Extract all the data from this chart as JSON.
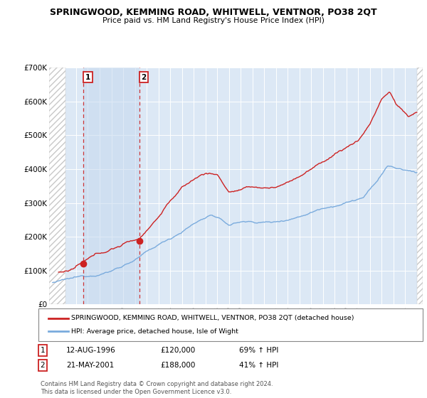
{
  "title": "SPRINGWOOD, KEMMING ROAD, WHITWELL, VENTNOR, PO38 2QT",
  "subtitle": "Price paid vs. HM Land Registry's House Price Index (HPI)",
  "legend_line1": "SPRINGWOOD, KEMMING ROAD, WHITWELL, VENTNOR, PO38 2QT (detached house)",
  "legend_line2": "HPI: Average price, detached house, Isle of Wight",
  "sale1_date": "12-AUG-1996",
  "sale1_price": "£120,000",
  "sale1_hpi": "69% ↑ HPI",
  "sale1_x": 1996.62,
  "sale1_y": 120000,
  "sale2_date": "21-MAY-2001",
  "sale2_price": "£188,000",
  "sale2_hpi": "41% ↑ HPI",
  "sale2_x": 2001.38,
  "sale2_y": 188000,
  "footer": "Contains HM Land Registry data © Crown copyright and database right 2024.\nThis data is licensed under the Open Government Licence v3.0.",
  "property_color": "#cc2222",
  "hpi_color": "#7aabdd",
  "background_color": "#ffffff",
  "plot_bg_color": "#dce8f5",
  "hatch_color": "#c8c8c8",
  "shade_color": "#dce8f5",
  "ylim": [
    0,
    700000
  ],
  "xlim_start": 1993.7,
  "xlim_end": 2025.5
}
